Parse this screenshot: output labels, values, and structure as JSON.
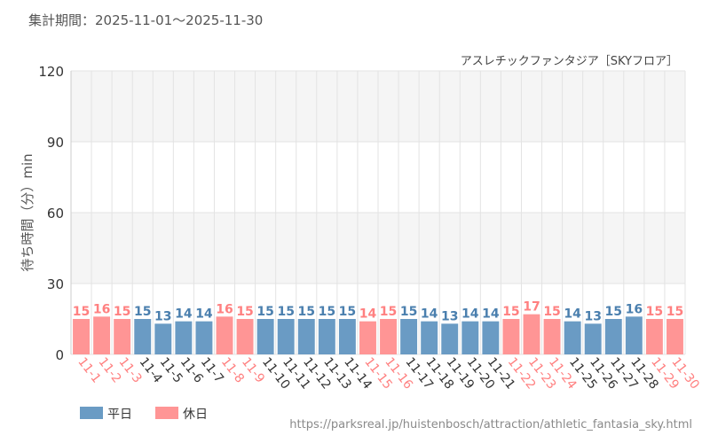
{
  "header": {
    "period_label": "集計期間：2025-11-01～2025-11-30"
  },
  "footer": {
    "url": "https://parksreal.jp/huistenbosch/attraction/athletic_fantasia_sky.html"
  },
  "colors": {
    "weekday": "#6a9bc4",
    "weekday_label": "#4a7fae",
    "holiday": "#ff9595",
    "holiday_label": "#ff8080"
  },
  "chart_data": {
    "type": "bar",
    "title": "アスレチックファンタジア［SKYフロア］",
    "ylabel": "待ち時間（分）min",
    "xlabel": "",
    "ylim": [
      0,
      120
    ],
    "yticks": [
      0,
      30,
      60,
      90,
      120
    ],
    "grid": true,
    "legend_position": "bottom-left",
    "categories": [
      "11-1",
      "11-2",
      "11-3",
      "11-4",
      "11-5",
      "11-6",
      "11-7",
      "11-8",
      "11-9",
      "11-10",
      "11-11",
      "11-12",
      "11-13",
      "11-14",
      "11-15",
      "11-16",
      "11-17",
      "11-18",
      "11-19",
      "11-20",
      "11-21",
      "11-22",
      "11-23",
      "11-24",
      "11-25",
      "11-26",
      "11-27",
      "11-28",
      "11-29",
      "11-30"
    ],
    "values": [
      15,
      16,
      15,
      15,
      13,
      14,
      14,
      16,
      15,
      15,
      15,
      15,
      15,
      15,
      14,
      15,
      15,
      14,
      13,
      14,
      14,
      15,
      17,
      15,
      14,
      13,
      15,
      16,
      15,
      15
    ],
    "day_type": [
      "holiday",
      "holiday",
      "holiday",
      "weekday",
      "weekday",
      "weekday",
      "weekday",
      "holiday",
      "holiday",
      "weekday",
      "weekday",
      "weekday",
      "weekday",
      "weekday",
      "holiday",
      "holiday",
      "weekday",
      "weekday",
      "weekday",
      "weekday",
      "weekday",
      "holiday",
      "holiday",
      "holiday",
      "weekday",
      "weekday",
      "weekday",
      "weekday",
      "holiday",
      "holiday"
    ],
    "legend": [
      {
        "key": "weekday",
        "label": "平日"
      },
      {
        "key": "holiday",
        "label": "休日"
      }
    ]
  }
}
